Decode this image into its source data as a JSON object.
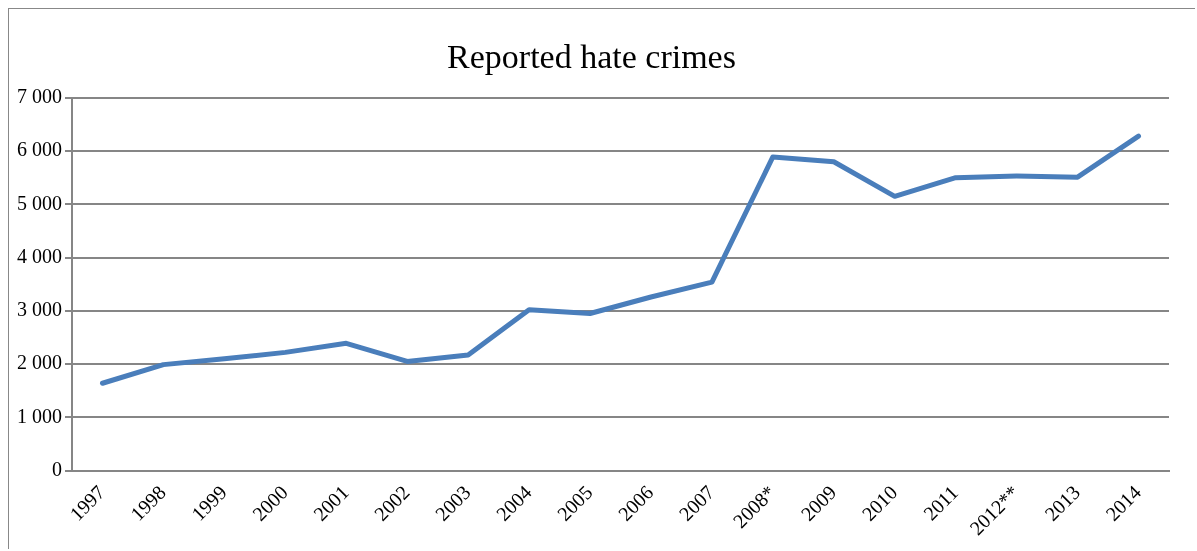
{
  "chart_data": {
    "type": "line",
    "title": "Reported hate crimes",
    "categories": [
      "1997",
      "1998",
      "1999",
      "2000",
      "2001",
      "2002",
      "2003",
      "2004",
      "2005",
      "2006",
      "2007",
      "2008*",
      "2009",
      "2010",
      "2011",
      "2012**",
      "2013",
      "2014"
    ],
    "series": [
      {
        "color": "#4a7ebb",
        "values": [
          1640,
          1990,
          2100,
          2220,
          2390,
          2050,
          2170,
          3020,
          2950,
          3260,
          3540,
          5890,
          5800,
          5150,
          5500,
          5530,
          5510,
          6280
        ]
      }
    ],
    "ylim": [
      0,
      7000
    ],
    "yticks": [
      {
        "value": 0,
        "label": "0"
      },
      {
        "value": 1000,
        "label": "1 000"
      },
      {
        "value": 2000,
        "label": "2 000"
      },
      {
        "value": 3000,
        "label": "3 000"
      },
      {
        "value": 4000,
        "label": "4 000"
      },
      {
        "value": 5000,
        "label": "5 000"
      },
      {
        "value": 6000,
        "label": "6 000"
      },
      {
        "value": 7000,
        "label": "7 000"
      }
    ],
    "grid": "y",
    "legend": false,
    "marker": "none",
    "line_style": "solid"
  }
}
